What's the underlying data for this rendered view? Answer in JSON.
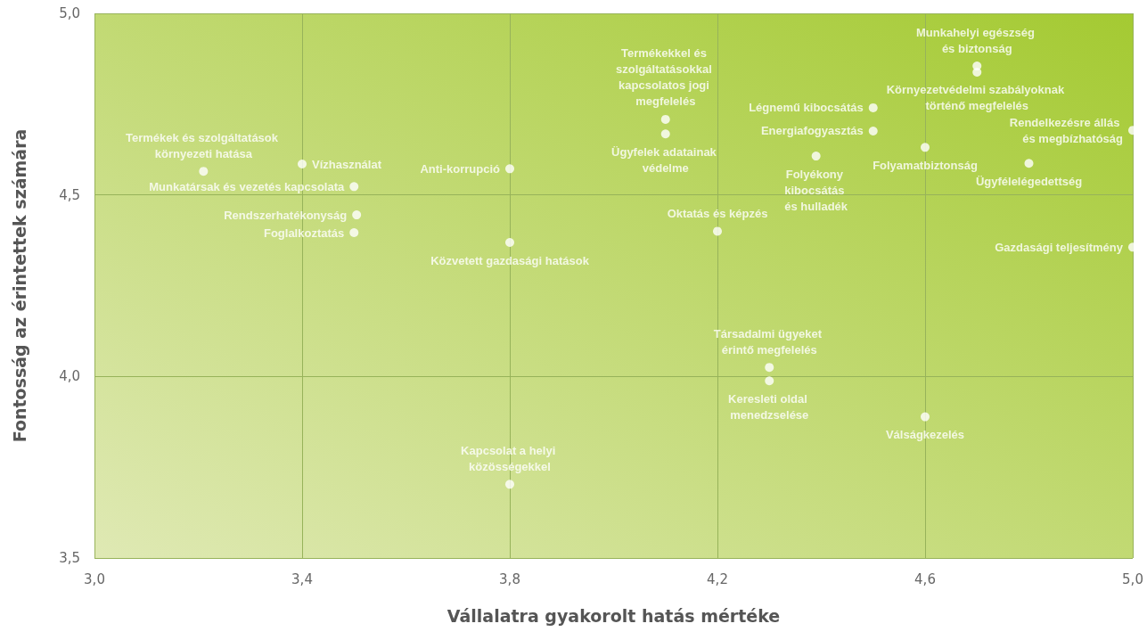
{
  "chart_data": {
    "type": "scatter",
    "xlabel": "Vállalatra gyakorolt hatás mértéke",
    "ylabel": "Fontosság az érintettek számára",
    "xlim": [
      3.0,
      5.0
    ],
    "xticks": [
      {
        "value": 3.0,
        "label": "3,0"
      },
      {
        "value": 3.4,
        "label": "3,4"
      },
      {
        "value": 3.8,
        "label": "3,8"
      },
      {
        "value": 4.2,
        "label": "4,2"
      },
      {
        "value": 4.6,
        "label": "4,6"
      },
      {
        "value": 5.0,
        "label": "5,0"
      }
    ],
    "ylim": [
      3.5,
      5.0
    ],
    "yticks": [
      {
        "value": 3.5,
        "label": "3,5"
      },
      {
        "value": 4.0,
        "label": "4,0"
      },
      {
        "value": 4.5,
        "label": "4,5"
      },
      {
        "value": 5.0,
        "label": "5,0"
      }
    ],
    "grid": true,
    "legend": false,
    "marker": "circle",
    "series": [
      {
        "name": "Termékek és szolgáltatások környezeti hatása",
        "color": "#ffffff",
        "x": [
          3.21
        ],
        "values": [
          4.565
        ]
      },
      {
        "name": "Vízhasználat",
        "color": "#ffffff",
        "x": [
          3.4
        ],
        "values": [
          4.585
        ]
      },
      {
        "name": "Munkatársak és vezetés kapcsolata",
        "color": "#ffffff",
        "x": [
          3.5
        ],
        "values": [
          4.523
        ]
      },
      {
        "name": "Rendszerhatékonyság",
        "color": "#ffffff",
        "x": [
          3.505
        ],
        "values": [
          4.445
        ]
      },
      {
        "name": "Foglalkoztatás",
        "color": "#ffffff",
        "x": [
          3.5
        ],
        "values": [
          4.396
        ]
      },
      {
        "name": "Anti-korrupció",
        "color": "#ffffff",
        "x": [
          3.8
        ],
        "values": [
          4.572
        ]
      },
      {
        "name": "Közvetett gazdasági hatások",
        "color": "#ffffff",
        "x": [
          3.8
        ],
        "values": [
          4.369
        ]
      },
      {
        "name": "Kapcsolat a helyi közösségekkel",
        "color": "#ffffff",
        "x": [
          3.8
        ],
        "values": [
          3.703
        ]
      },
      {
        "name": "Termékekkel és szolgáltatásokkal kapcsolatos jogi megfelelés",
        "color": "#ffffff",
        "x": [
          4.1
        ],
        "values": [
          4.708
        ]
      },
      {
        "name": "Ügyfelek adatainak védelme",
        "color": "#ffffff",
        "x": [
          4.1
        ],
        "values": [
          4.668
        ]
      },
      {
        "name": "Oktatás és képzés",
        "color": "#ffffff",
        "x": [
          4.2
        ],
        "values": [
          4.4
        ]
      },
      {
        "name": "Társadalmi ügyeket érintő megfelelés",
        "color": "#ffffff",
        "x": [
          4.3
        ],
        "values": [
          4.025
        ]
      },
      {
        "name": "Keresleti oldal menedzselése",
        "color": "#ffffff",
        "x": [
          4.3
        ],
        "values": [
          3.988
        ]
      },
      {
        "name": "Légnemű kibocsátás",
        "color": "#ffffff",
        "x": [
          4.5
        ],
        "values": [
          4.74
        ]
      },
      {
        "name": "Energiafogyasztás",
        "color": "#ffffff",
        "x": [
          4.5
        ],
        "values": [
          4.676
        ]
      },
      {
        "name": "Folyékony kibocsátás és hulladék",
        "color": "#ffffff",
        "x": [
          4.39
        ],
        "values": [
          4.607
        ]
      },
      {
        "name": "Folyamatbiztonság",
        "color": "#ffffff",
        "x": [
          4.6
        ],
        "values": [
          4.631
        ]
      },
      {
        "name": "Válságkezelés",
        "color": "#ffffff",
        "x": [
          4.6
        ],
        "values": [
          3.889
        ]
      },
      {
        "name": "Munkahelyi egészség és biztonság",
        "color": "#ffffff",
        "x": [
          4.7
        ],
        "values": [
          4.855
        ]
      },
      {
        "name": "Környezetvédelmi szabályoknak történő megfelelés",
        "color": "#ffffff",
        "x": [
          4.7
        ],
        "values": [
          4.838
        ]
      },
      {
        "name": "Ügyfélelégedettség",
        "color": "#ffffff",
        "x": [
          4.8
        ],
        "values": [
          4.587
        ]
      },
      {
        "name": "Rendelkezésre állás és megbízhatóság",
        "color": "#ffffff",
        "x": [
          5.0
        ],
        "values": [
          4.678
        ]
      },
      {
        "name": "Gazdasági teljesítmény",
        "color": "#ffffff",
        "x": [
          5.0
        ],
        "values": [
          4.356
        ]
      }
    ]
  }
}
